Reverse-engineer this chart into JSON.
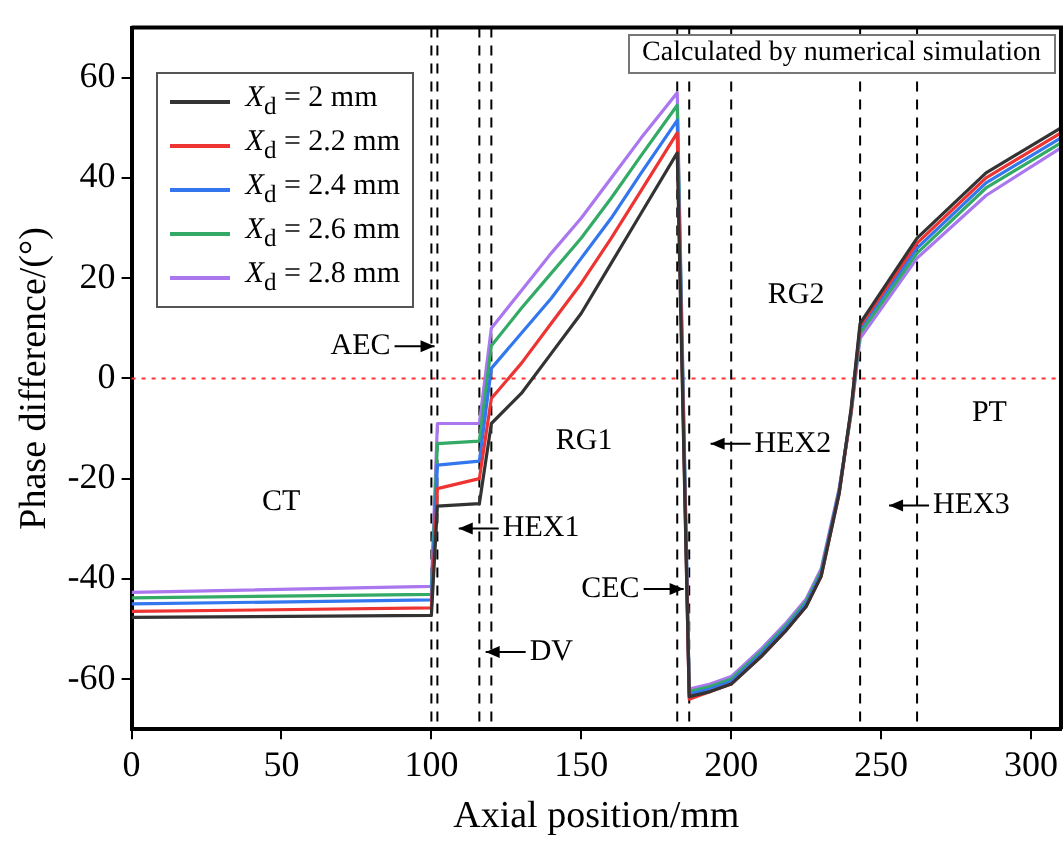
{
  "chart_data": {
    "type": "line",
    "xlabel": "Axial position/mm",
    "ylabel": "Phase difference/(°)",
    "x": [
      0,
      100,
      102,
      116,
      120,
      130,
      140,
      150,
      160,
      170,
      182,
      186,
      193,
      200,
      210,
      218,
      225,
      230,
      236,
      240,
      243,
      262,
      285,
      310
    ],
    "series": [
      {
        "name": "X$_{d}$ = 2 mm",
        "color": "#333333",
        "values": [
          -47.7,
          -47.3,
          -25.5,
          -25,
          -9,
          -3,
          5,
          13,
          23,
          33,
          45,
          -63.5,
          -62.5,
          -61,
          -55.5,
          -50.5,
          -45.5,
          -39.5,
          -23,
          -6,
          11,
          28,
          41,
          50
        ]
      },
      {
        "name": "X$_{d}$ = 2.2 mm",
        "color": "#ee3333",
        "values": [
          -46.5,
          -45.8,
          -22,
          -20,
          -4,
          3,
          11,
          19,
          28,
          37.5,
          49,
          -64,
          -62.5,
          -61,
          -55.5,
          -50.5,
          -45.5,
          -39.5,
          -23,
          -6.5,
          10.5,
          27,
          40,
          49
        ]
      },
      {
        "name": "X$_{d}$ = 2.4 mm",
        "color": "#3377ee",
        "values": [
          -45,
          -44.2,
          -17.3,
          -16.5,
          2,
          9,
          16,
          24,
          32,
          41,
          51.5,
          -63,
          -62,
          -60.5,
          -55,
          -50,
          -45,
          -39,
          -22.5,
          -6.5,
          10,
          26,
          39,
          48
        ]
      },
      {
        "name": "X$_{d}$ = 2.6 mm",
        "color": "#33aa66",
        "values": [
          -43.8,
          -43.1,
          -13,
          -12.5,
          6.5,
          14,
          21,
          28,
          36,
          44.5,
          54.5,
          -62.5,
          -61.5,
          -60,
          -54.5,
          -49.5,
          -44.5,
          -38.5,
          -22.5,
          -7,
          9,
          25,
          38,
          47
        ]
      },
      {
        "name": "X$_{d}$ = 2.8 mm",
        "color": "#aa77ee",
        "values": [
          -42.7,
          -41.5,
          -9,
          -9,
          10,
          17.5,
          25,
          32,
          40,
          48,
          57,
          -62,
          -61,
          -59.5,
          -54,
          -49,
          -44,
          -38,
          -22,
          -7,
          8,
          24,
          36.5,
          46
        ]
      }
    ],
    "xlim": [
      0,
      310
    ],
    "xticks": [
      0,
      50,
      100,
      150,
      200,
      250,
      300
    ],
    "ylim": [
      -70,
      70
    ],
    "yticks": [
      -60,
      -40,
      -20,
      0,
      20,
      40,
      60
    ],
    "grid": false,
    "legend": "top left",
    "ref_lines": [
      {
        "axis": "y",
        "value": 0,
        "color": "#ff3333",
        "line_style": "dotted"
      },
      {
        "axis": "x",
        "value": 100,
        "color": "#000000",
        "line_style": "dashed"
      },
      {
        "axis": "x",
        "value": 102,
        "color": "#000000",
        "line_style": "dashed"
      },
      {
        "axis": "x",
        "value": 116,
        "color": "#000000",
        "line_style": "dashed"
      },
      {
        "axis": "x",
        "value": 120,
        "color": "#000000",
        "line_style": "dashed"
      },
      {
        "axis": "x",
        "value": 182,
        "color": "#000000",
        "line_style": "dashed"
      },
      {
        "axis": "x",
        "value": 186,
        "color": "#000000",
        "line_style": "dashed"
      },
      {
        "axis": "x",
        "value": 200,
        "color": "#000000",
        "line_style": "dashed"
      },
      {
        "axis": "x",
        "value": 243,
        "color": "#000000",
        "line_style": "dashed"
      },
      {
        "axis": "x",
        "value": 262,
        "color": "#000000",
        "line_style": "dashed"
      }
    ],
    "annotations": [
      "Calculated by numerical simulation",
      "CT",
      "AEC",
      "HEX1",
      "DV",
      "RG1",
      "CEC",
      "HEX2",
      "RG2",
      "HEX3",
      "PT"
    ]
  }
}
